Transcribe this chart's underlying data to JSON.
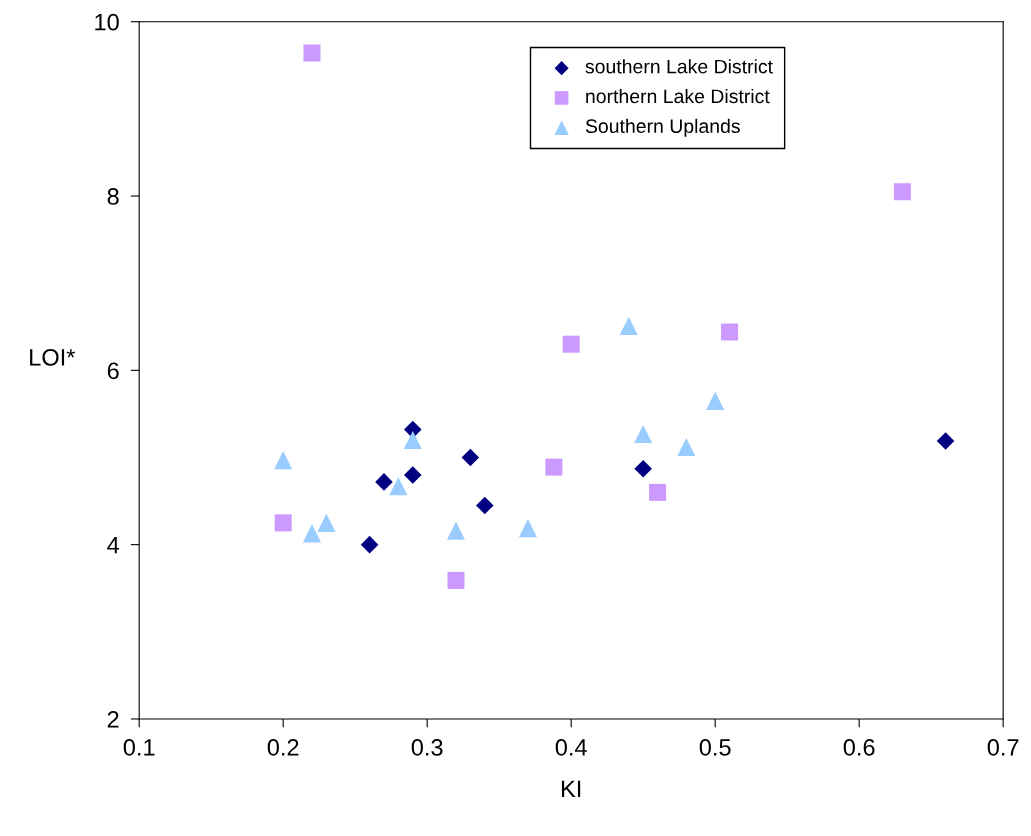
{
  "chart_data": {
    "type": "scatter",
    "xlabel": "KI",
    "ylabel": "LOI*",
    "xlim": [
      0.1,
      0.7
    ],
    "xticks": [
      0.1,
      0.2,
      0.3,
      0.4,
      0.5,
      0.6,
      0.7
    ],
    "ylim": [
      2,
      10
    ],
    "yticks": [
      2,
      4,
      6,
      8,
      10
    ],
    "grid": false,
    "legend": "top",
    "series": [
      {
        "name": "southern Lake District",
        "color": "#000080",
        "marker": "diamond",
        "x": [
          0.27,
          0.26,
          0.29,
          0.29,
          0.33,
          0.34,
          0.45,
          0.66
        ],
        "values": [
          4.72,
          4.0,
          5.32,
          4.8,
          5.0,
          4.45,
          4.87,
          5.19
        ]
      },
      {
        "name": "northern Lake District",
        "color": "#cc99ff",
        "marker": "square",
        "x": [
          0.22,
          0.2,
          0.32,
          0.388,
          0.4,
          0.46,
          0.51,
          0.63
        ],
        "values": [
          9.64,
          4.25,
          3.59,
          4.89,
          6.3,
          4.6,
          6.44,
          8.05
        ]
      },
      {
        "name": "Southern Uplands",
        "color": "#99ccff",
        "marker": "triangle",
        "x": [
          0.2,
          0.22,
          0.23,
          0.28,
          0.29,
          0.32,
          0.37,
          0.44,
          0.45,
          0.48,
          0.5
        ],
        "values": [
          4.97,
          4.13,
          4.25,
          4.67,
          5.2,
          4.16,
          4.19,
          6.51,
          5.27,
          5.12,
          5.65
        ]
      }
    ]
  }
}
